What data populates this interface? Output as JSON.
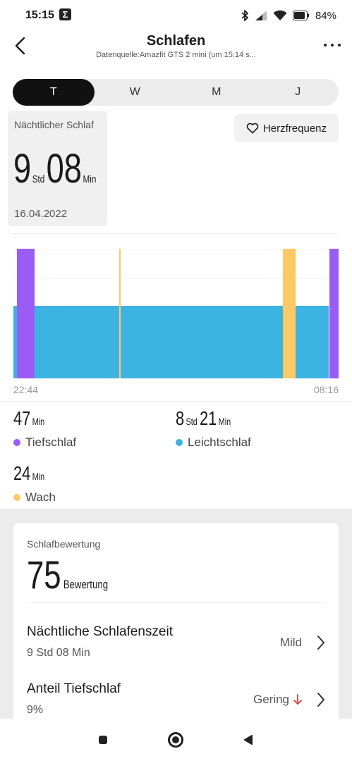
{
  "status_bar": {
    "time": "15:15",
    "notification_icon": "sigma-icon",
    "icons": [
      "bluetooth-icon",
      "signal-icon",
      "wifi-icon",
      "battery-icon"
    ],
    "battery": "84%"
  },
  "header": {
    "title": "Schlafen",
    "subtitle": "Datenquelle:Amazfit GTS 2 mini (um 15:14 s..."
  },
  "tabs": [
    {
      "label": "T",
      "active": true
    },
    {
      "label": "W",
      "active": false
    },
    {
      "label": "M",
      "active": false
    },
    {
      "label": "J",
      "active": false
    }
  ],
  "summary": {
    "label": "Nächtlicher Schlaf",
    "hours": "9",
    "hours_unit": "Std",
    "minutes": "08",
    "minutes_unit": "Min",
    "date": "16.04.2022"
  },
  "heart_rate_button": {
    "label": "Herzfrequenz",
    "icon": "heart-icon"
  },
  "chart": {
    "start_time": "22:44",
    "end_time": "08:16",
    "colors": {
      "deep": "#9a5cf5",
      "light": "#3db3e2",
      "awake": "#fdc965"
    }
  },
  "stats": [
    {
      "parts": [
        {
          "num": "47",
          "unit": "Min"
        }
      ],
      "label": "Tiefschlaf",
      "color": "#9a5cf5"
    },
    {
      "parts": [
        {
          "num": "8",
          "unit": "Std"
        },
        {
          "num": "21",
          "unit": "Min"
        }
      ],
      "label": "Leichtschlaf",
      "color": "#3db3e2"
    },
    {
      "parts": [
        {
          "num": "24",
          "unit": "Min"
        }
      ],
      "label": "Wach",
      "color": "#fdc965"
    }
  ],
  "score": {
    "label": "Schlafbewertung",
    "value": "75",
    "unit": "Bewertung"
  },
  "metrics": [
    {
      "title": "Nächtliche Schlafenszeit",
      "value": "9 Std 08 Min",
      "rating": "Mild",
      "trend": ""
    },
    {
      "title": "Anteil Tiefschlaf",
      "value": "9%",
      "rating": "Gering",
      "trend": "down",
      "trend_color": "#e84a4a"
    }
  ],
  "nav_bar": {
    "icons": [
      "recents-icon",
      "home-icon",
      "back-icon"
    ]
  }
}
